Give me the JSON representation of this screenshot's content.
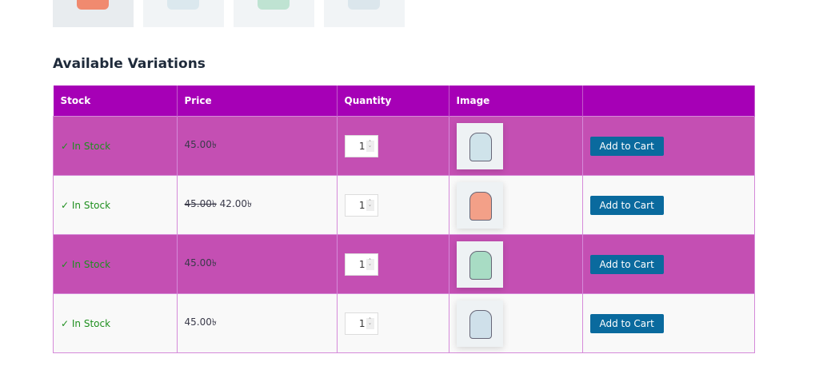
{
  "gallery": [
    {
      "color": "#f08a6f"
    },
    {
      "color": "#dbe8ee"
    },
    {
      "color": "#bfe3d2"
    },
    {
      "color": "#dbe6ec"
    }
  ],
  "heading": "Available Variations",
  "columns": [
    "Stock",
    "Price",
    "Quantity",
    "Image",
    ""
  ],
  "rows": [
    {
      "stock": "✓ In Stock",
      "price": "45.00৳",
      "old_price": "",
      "quantity": "1",
      "image_color": "#cfe3ea",
      "button": "Add to Cart"
    },
    {
      "stock": "✓ In Stock",
      "price": "42.00৳",
      "old_price": "45.00৳",
      "quantity": "1",
      "image_color": "#f3a088",
      "button": "Add to Cart"
    },
    {
      "stock": "✓ In Stock",
      "price": "45.00৳",
      "old_price": "",
      "quantity": "1",
      "image_color": "#a8dcc4",
      "button": "Add to Cart"
    },
    {
      "stock": "✓ In Stock",
      "price": "45.00৳",
      "old_price": "",
      "quantity": "1",
      "image_color": "#cfe0ea",
      "button": "Add to Cart"
    }
  ]
}
